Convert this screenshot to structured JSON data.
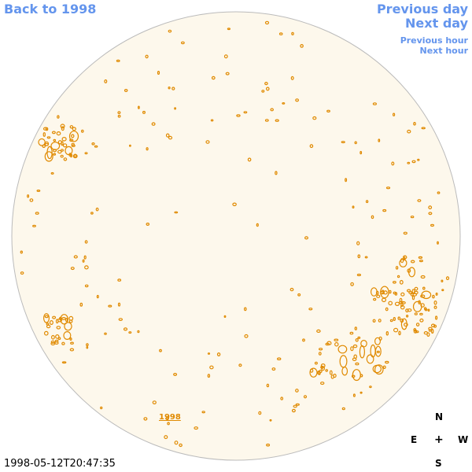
{
  "nav": {
    "back": "Back to 1998",
    "previous_day": "Previous day",
    "next_day": "Next day",
    "previous_hour": "Previous hour",
    "next_hour": "Next hour"
  },
  "image": {
    "year_label": "1998",
    "timestamp": "1998-05-12T20:47:35"
  },
  "compass": {
    "n": "N",
    "s": "S",
    "e": "E",
    "w": "W",
    "center": "+"
  },
  "colors": {
    "link": "#6495ed",
    "disk_fill": "#fdf8ec",
    "disk_edge": "#bbbbbb",
    "contour": "#e08a00"
  }
}
